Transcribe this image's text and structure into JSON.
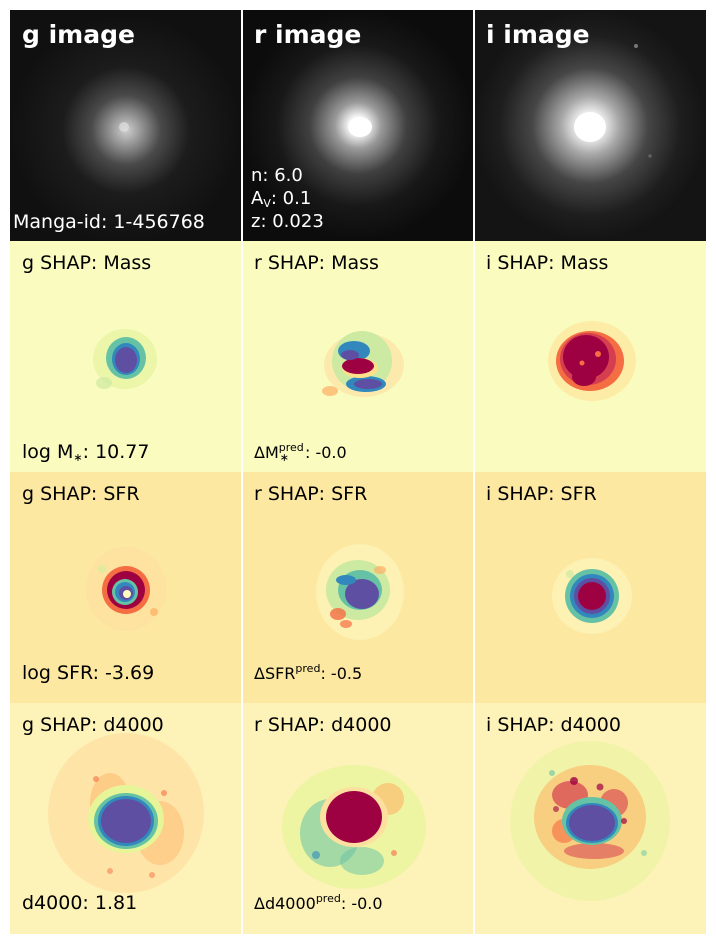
{
  "figure": {
    "rows": [
      {
        "kind": "image",
        "panels": [
          {
            "band": "g",
            "title": "g image"
          },
          {
            "band": "r",
            "title": "r image"
          },
          {
            "band": "i",
            "title": "i image"
          }
        ]
      },
      {
        "kind": "shap",
        "panels": [
          {
            "band": "g",
            "title": "g SHAP: Mass"
          },
          {
            "band": "r",
            "title": "r SHAP: Mass"
          },
          {
            "band": "i",
            "title": "i SHAP: Mass"
          }
        ]
      },
      {
        "kind": "shap",
        "panels": [
          {
            "band": "g",
            "title": "g SHAP: SFR"
          },
          {
            "band": "r",
            "title": "r SHAP: SFR"
          },
          {
            "band": "i",
            "title": "i SHAP: SFR"
          }
        ]
      },
      {
        "kind": "shap",
        "panels": [
          {
            "band": "g",
            "title": "g SHAP: d4000"
          },
          {
            "band": "r",
            "title": "r SHAP: d4000"
          },
          {
            "band": "i",
            "title": "i SHAP: d4000"
          }
        ]
      }
    ],
    "manga_id": "Manga-id: 1-456768",
    "galaxy_params": {
      "n": "n: 6.0",
      "av_prefix": "A",
      "av_sub": "V",
      "av_value": ": 0.1",
      "z": "z: 0.023"
    },
    "mass": {
      "stat_prefix": "log M",
      "stat_sub": "∗",
      "stat_value": ": 10.77",
      "delta_prefix": "ΔM",
      "delta_sup": "pred",
      "delta_sub": "∗",
      "delta_value": ": -0.0"
    },
    "sfr": {
      "stat": "log SFR: -3.69",
      "delta_prefix": "ΔSFR",
      "delta_sup": "pred",
      "delta_value": ": -0.5"
    },
    "d4000": {
      "stat": "d4000: 1.81",
      "delta_prefix": "Δd4000",
      "delta_sup": "pred",
      "delta_value": ": -0.0"
    },
    "colors": {
      "mass_bg": "#fafbbf",
      "sfr_bg": "#fce8a0",
      "d4000_bg": "#fdf2b8",
      "shap_negative": "#5e4fa2",
      "shap_positive": "#9e0142",
      "shap_mid_blue": "#3288bd",
      "shap_mid_green": "#66c2a5",
      "shap_warm": "#f46d43"
    }
  }
}
